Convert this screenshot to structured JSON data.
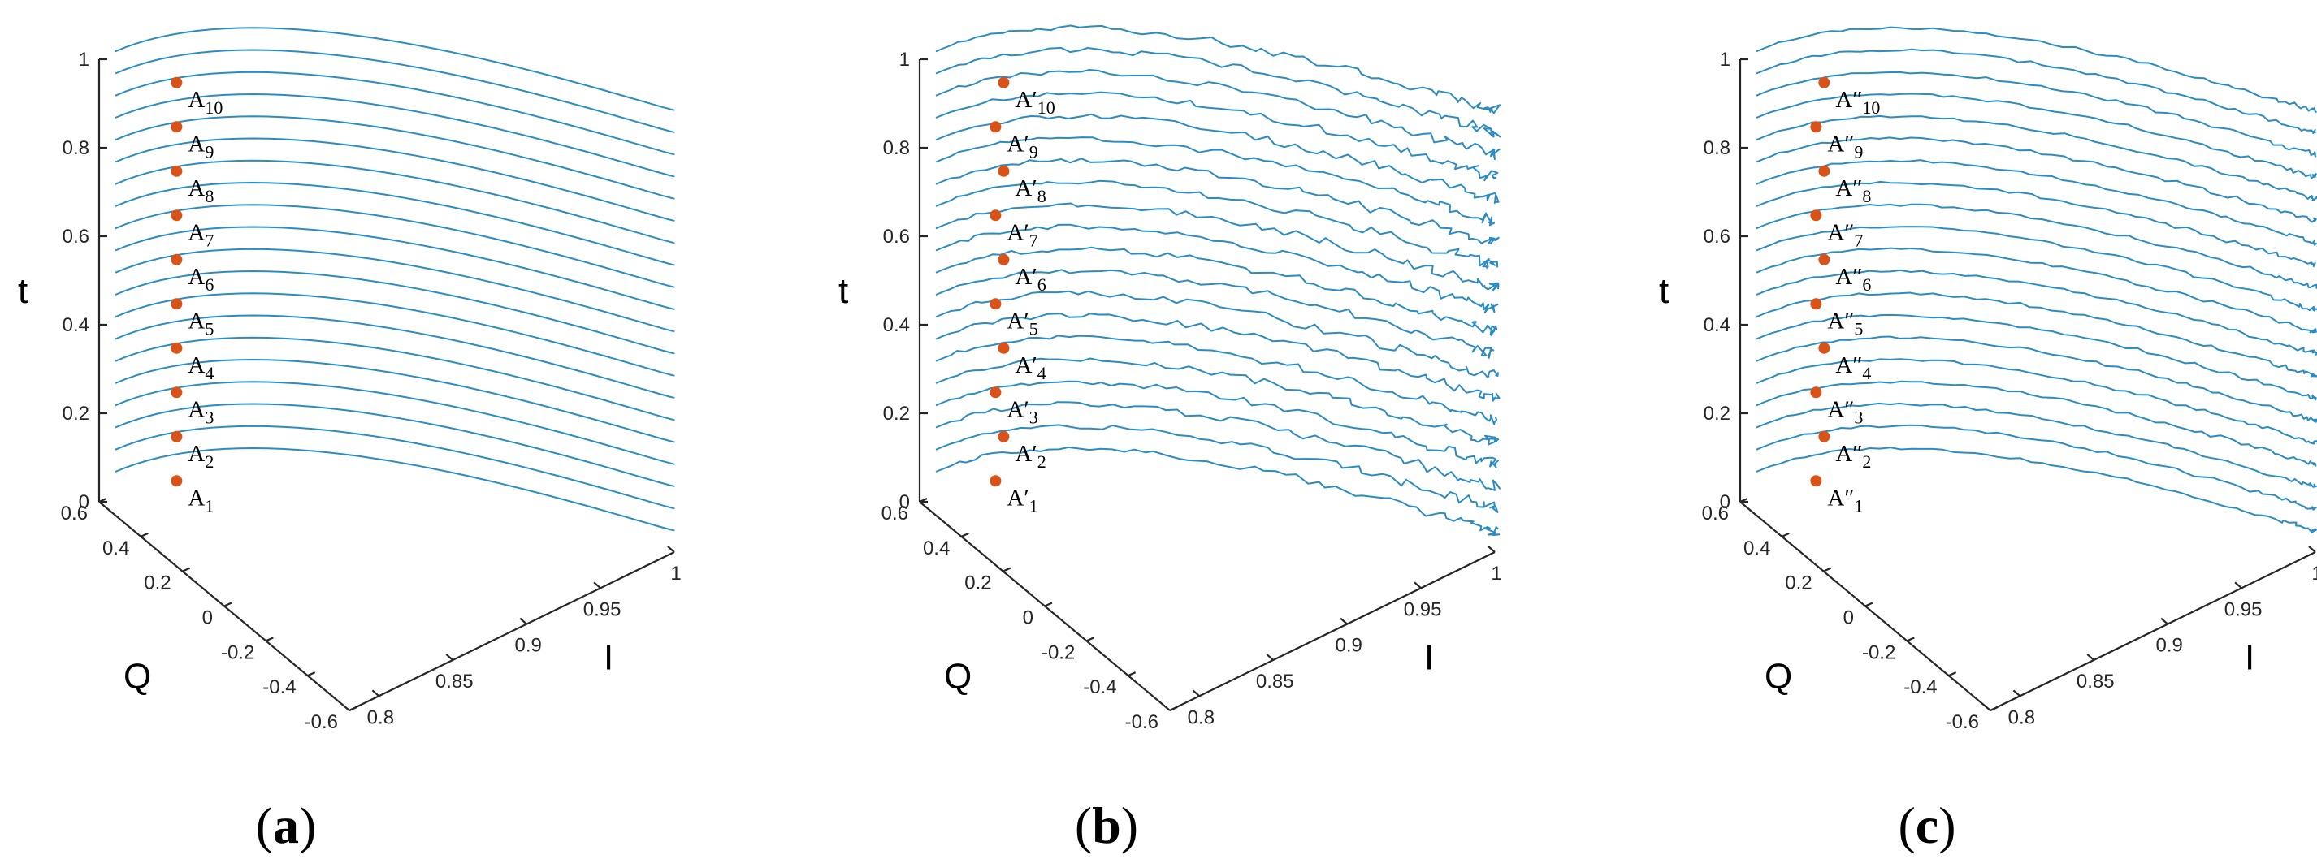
{
  "figure": {
    "colors": {
      "curve": "#2b8cc4",
      "marker": "#d95319",
      "axis": "#262626"
    }
  },
  "chart_data": [
    {
      "type": "line",
      "panel_label": "(a)",
      "zlabel": "t",
      "xlabel": "I",
      "ylabel": "Q",
      "zticks": [
        "0",
        "0.2",
        "0.4",
        "0.6",
        "0.8",
        "1"
      ],
      "yticks": [
        "0.6",
        "0.4",
        "0.2",
        "0",
        "-0.2",
        "-0.4",
        "-0.6"
      ],
      "xticks": [
        "0.8",
        "0.85",
        "0.9",
        "0.95",
        "1"
      ],
      "xlim": [
        0.78,
        1.0
      ],
      "ylim": [
        -0.6,
        0.6
      ],
      "zlim": [
        0,
        1
      ],
      "noise": 0,
      "t_levels": [
        0.05,
        0.1,
        0.15,
        0.2,
        0.25,
        0.3,
        0.35,
        0.4,
        0.45,
        0.5,
        0.55,
        0.6,
        0.65,
        0.7,
        0.75,
        0.8,
        0.85,
        0.9,
        0.95,
        1.0
      ],
      "labeled_points": [
        {
          "label_base": "A",
          "sub": "1",
          "prime": "",
          "t": 0.1
        },
        {
          "label_base": "A",
          "sub": "2",
          "prime": "",
          "t": 0.2
        },
        {
          "label_base": "A",
          "sub": "3",
          "prime": "",
          "t": 0.3
        },
        {
          "label_base": "A",
          "sub": "4",
          "prime": "",
          "t": 0.4
        },
        {
          "label_base": "A",
          "sub": "5",
          "prime": "",
          "t": 0.5
        },
        {
          "label_base": "A",
          "sub": "6",
          "prime": "",
          "t": 0.6
        },
        {
          "label_base": "A",
          "sub": "7",
          "prime": "",
          "t": 0.7
        },
        {
          "label_base": "A",
          "sub": "8",
          "prime": "",
          "t": 0.8
        },
        {
          "label_base": "A",
          "sub": "9",
          "prime": "",
          "t": 0.9
        },
        {
          "label_base": "A",
          "sub": "10",
          "prime": "",
          "t": 1.0
        }
      ]
    },
    {
      "type": "line",
      "panel_label": "(b)",
      "zlabel": "t",
      "xlabel": "I",
      "ylabel": "Q",
      "zticks": [
        "0",
        "0.2",
        "0.4",
        "0.6",
        "0.8",
        "1"
      ],
      "yticks": [
        "0.6",
        "0.4",
        "0.2",
        "0",
        "-0.2",
        "-0.4",
        "-0.6"
      ],
      "xticks": [
        "0.8",
        "0.85",
        "0.9",
        "0.95",
        "1"
      ],
      "xlim": [
        0.78,
        1.0
      ],
      "ylim": [
        -0.6,
        0.6
      ],
      "zlim": [
        0,
        1
      ],
      "noise": 1.0,
      "t_levels": [
        0.05,
        0.1,
        0.15,
        0.2,
        0.25,
        0.3,
        0.35,
        0.4,
        0.45,
        0.5,
        0.55,
        0.6,
        0.65,
        0.7,
        0.75,
        0.8,
        0.85,
        0.9,
        0.95,
        1.0
      ],
      "labeled_points": [
        {
          "label_base": "A",
          "sub": "1",
          "prime": "′",
          "t": 0.1
        },
        {
          "label_base": "A",
          "sub": "2",
          "prime": "′",
          "t": 0.2
        },
        {
          "label_base": "A",
          "sub": "3",
          "prime": "′",
          "t": 0.3
        },
        {
          "label_base": "A",
          "sub": "4",
          "prime": "′",
          "t": 0.4
        },
        {
          "label_base": "A",
          "sub": "5",
          "prime": "′",
          "t": 0.5
        },
        {
          "label_base": "A",
          "sub": "6",
          "prime": "′",
          "t": 0.6
        },
        {
          "label_base": "A",
          "sub": "7",
          "prime": "′",
          "t": 0.7
        },
        {
          "label_base": "A",
          "sub": "8",
          "prime": "′",
          "t": 0.8
        },
        {
          "label_base": "A",
          "sub": "9",
          "prime": "′",
          "t": 0.9
        },
        {
          "label_base": "A",
          "sub": "10",
          "prime": "′",
          "t": 1.0
        }
      ]
    },
    {
      "type": "line",
      "panel_label": "(c)",
      "zlabel": "t",
      "xlabel": "I",
      "ylabel": "Q",
      "zticks": [
        "0",
        "0.2",
        "0.4",
        "0.6",
        "0.8",
        "1"
      ],
      "yticks": [
        "0.6",
        "0.4",
        "0.2",
        "0",
        "-0.2",
        "-0.4",
        "-0.6"
      ],
      "xticks": [
        "0.8",
        "0.85",
        "0.9",
        "0.95",
        "1"
      ],
      "xlim": [
        0.78,
        1.0
      ],
      "ylim": [
        -0.6,
        0.6
      ],
      "zlim": [
        0,
        1
      ],
      "noise": 0.45,
      "t_levels": [
        0.05,
        0.1,
        0.15,
        0.2,
        0.25,
        0.3,
        0.35,
        0.4,
        0.45,
        0.5,
        0.55,
        0.6,
        0.65,
        0.7,
        0.75,
        0.8,
        0.85,
        0.9,
        0.95,
        1.0
      ],
      "labeled_points": [
        {
          "label_base": "A",
          "sub": "1",
          "prime": "″",
          "t": 0.1
        },
        {
          "label_base": "A",
          "sub": "2",
          "prime": "″",
          "t": 0.2
        },
        {
          "label_base": "A",
          "sub": "3",
          "prime": "″",
          "t": 0.3
        },
        {
          "label_base": "A",
          "sub": "4",
          "prime": "″",
          "t": 0.4
        },
        {
          "label_base": "A",
          "sub": "5",
          "prime": "″",
          "t": 0.5
        },
        {
          "label_base": "A",
          "sub": "6",
          "prime": "″",
          "t": 0.6
        },
        {
          "label_base": "A",
          "sub": "7",
          "prime": "″",
          "t": 0.7
        },
        {
          "label_base": "A",
          "sub": "8",
          "prime": "″",
          "t": 0.8
        },
        {
          "label_base": "A",
          "sub": "9",
          "prime": "″",
          "t": 0.9
        },
        {
          "label_base": "A",
          "sub": "10",
          "prime": "″",
          "t": 1.0
        }
      ]
    }
  ]
}
